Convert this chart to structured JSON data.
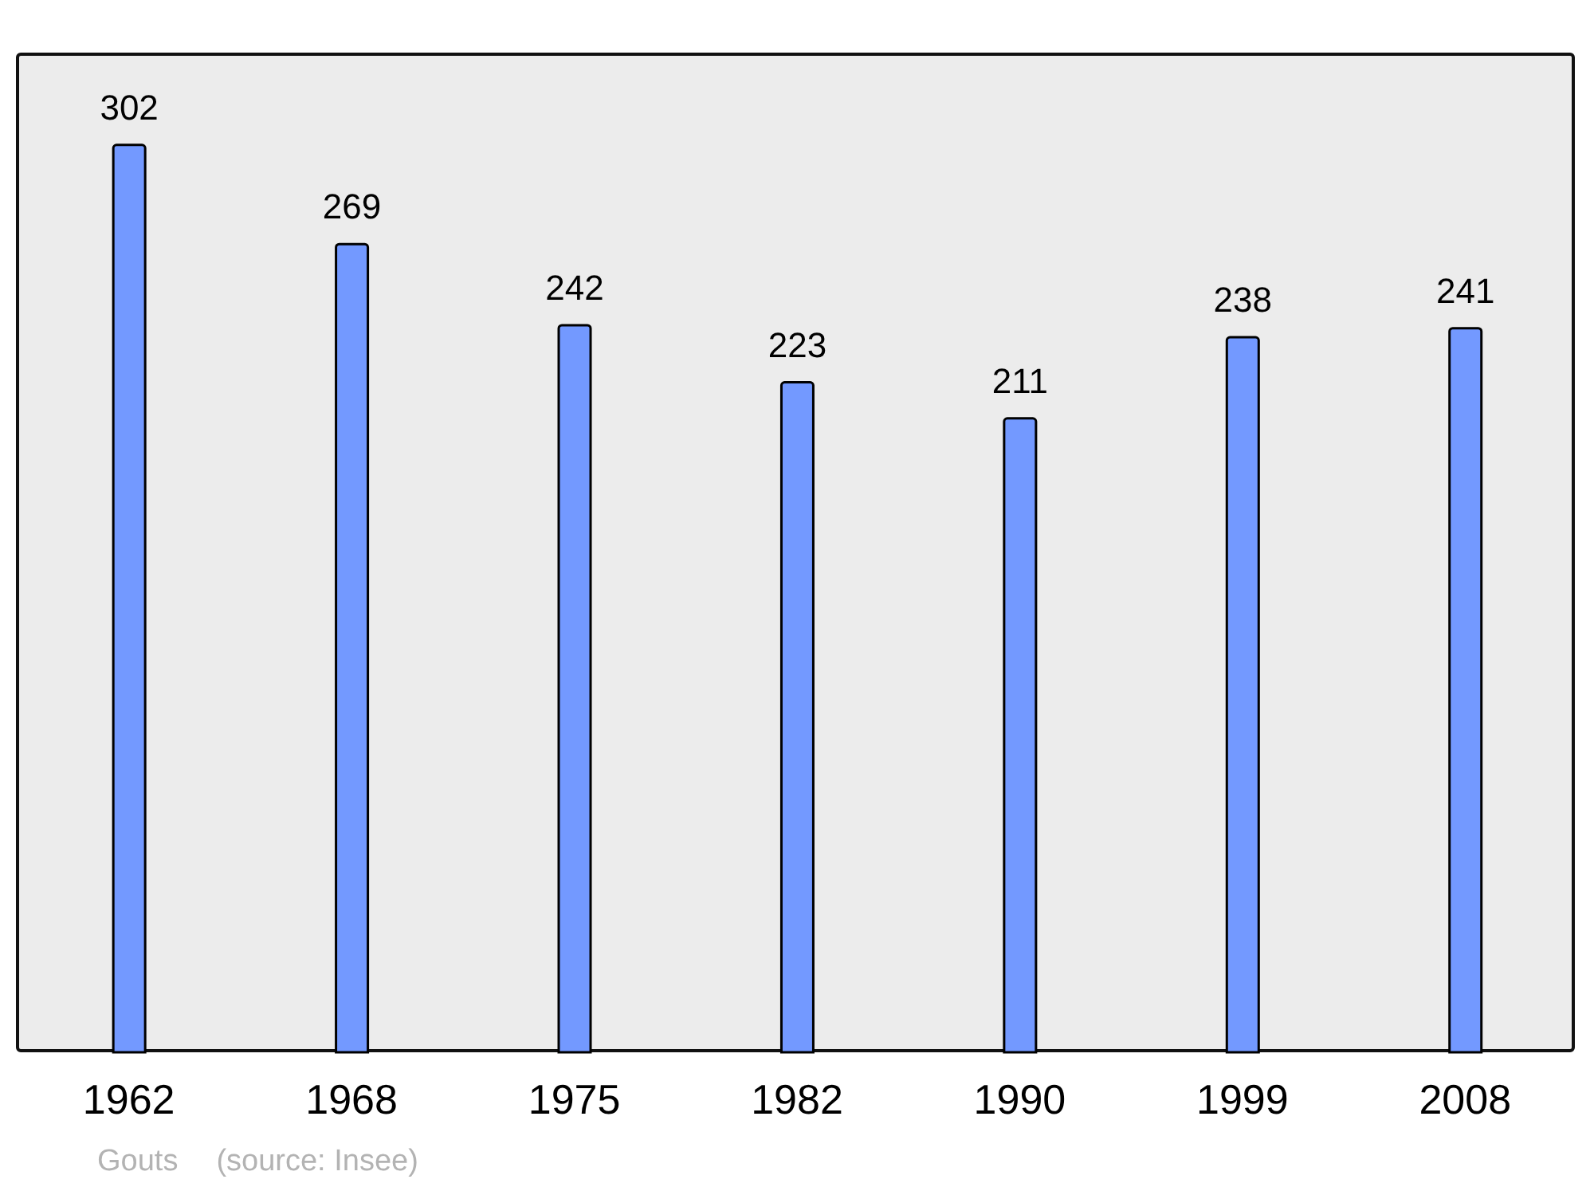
{
  "chart_data": {
    "type": "bar",
    "categories": [
      "1962",
      "1968",
      "1975",
      "1982",
      "1990",
      "1999",
      "2008"
    ],
    "values": [
      302,
      269,
      242,
      223,
      211,
      238,
      241
    ],
    "color": "#7399ff",
    "data_labels": true,
    "annotations": [
      "Gouts",
      "(source: Insee)"
    ]
  }
}
